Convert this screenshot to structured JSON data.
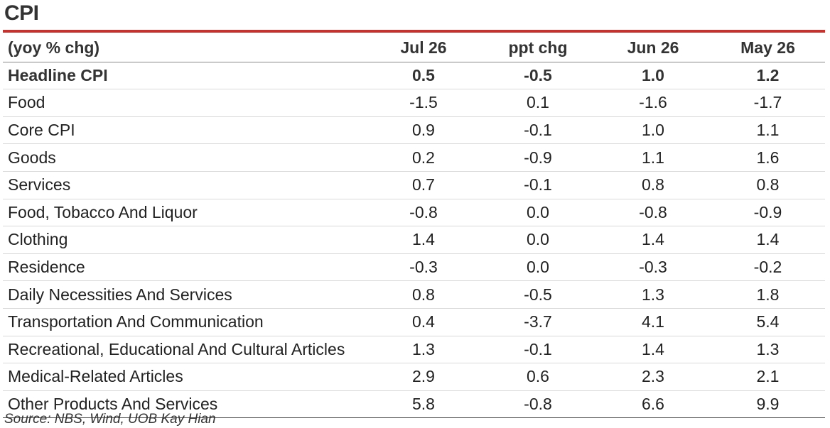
{
  "title": "CPI",
  "colors": {
    "rule": "#c8322e"
  },
  "table": {
    "headers": [
      "(yoy % chg)",
      "Jul 26",
      "ppt chg",
      "Jun 26",
      "May 26"
    ],
    "rows": [
      {
        "label": "Headline CPI",
        "values": [
          "0.5",
          "-0.5",
          "1.0",
          "1.2"
        ],
        "bold": true
      },
      {
        "label": "Food",
        "values": [
          "-1.5",
          "0.1",
          "-1.6",
          "-1.7"
        ]
      },
      {
        "label": "Core CPI",
        "values": [
          "0.9",
          "-0.1",
          "1.0",
          "1.1"
        ]
      },
      {
        "label": "Goods",
        "values": [
          "0.2",
          "-0.9",
          "1.1",
          "1.6"
        ]
      },
      {
        "label": "Services",
        "values": [
          "0.7",
          "-0.1",
          "0.8",
          "0.8"
        ]
      },
      {
        "label": "Food, Tobacco And Liquor",
        "values": [
          "-0.8",
          "0.0",
          "-0.8",
          "-0.9"
        ]
      },
      {
        "label": "Clothing",
        "values": [
          "1.4",
          "0.0",
          "1.4",
          "1.4"
        ]
      },
      {
        "label": "Residence",
        "values": [
          "-0.3",
          "0.0",
          "-0.3",
          "-0.2"
        ]
      },
      {
        "label": "Daily Necessities And Services",
        "values": [
          "0.8",
          "-0.5",
          "1.3",
          "1.8"
        ]
      },
      {
        "label": "Transportation And Communication",
        "values": [
          "0.4",
          "-3.7",
          "4.1",
          "5.4"
        ]
      },
      {
        "label": "Recreational, Educational And Cultural Articles",
        "values": [
          "1.3",
          "-0.1",
          "1.4",
          "1.3"
        ]
      },
      {
        "label": "Medical-Related Articles",
        "values": [
          "2.9",
          "0.6",
          "2.3",
          "2.1"
        ]
      },
      {
        "label": "Other Products And Services",
        "values": [
          "5.8",
          "-0.8",
          "6.6",
          "9.9"
        ]
      }
    ]
  },
  "source": "Source: NBS, Wind, UOB Kay Hian"
}
